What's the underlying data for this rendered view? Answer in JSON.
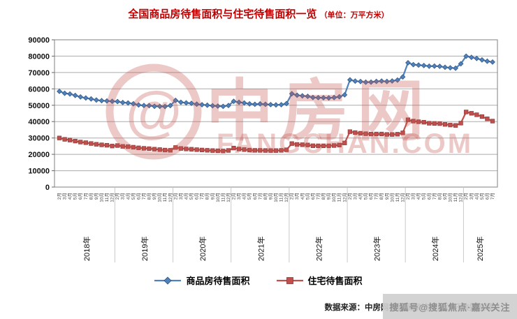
{
  "title": {
    "main": "全国商品房待售面积与住宅待售面积一览",
    "unit": "（单位：万平方米）"
  },
  "legend": [
    {
      "label": "商品房待售面积",
      "color": "#4F81BD",
      "border": "#2E537C",
      "marker": "diamond"
    },
    {
      "label": "住宅待售面积",
      "color": "#C0504D",
      "border": "#8C3836",
      "marker": "square"
    }
  ],
  "watermark": {
    "cn": "中房网",
    "en": "FANGCHAN.COM",
    "logo_glyph": "@"
  },
  "footer": {
    "source": "数据来源：中房网根据国家统计局公开数据整理",
    "sohu_badge": "搜狐号@搜狐焦点·嘉兴关注"
  },
  "colors": {
    "title_red": "#C00000",
    "series_blue": "#4F81BD",
    "series_red": "#C0504D",
    "gridline": "#ABABAB",
    "plot_border": "#808080",
    "watermark_red": "rgba(197,84,78,0.32)"
  },
  "chart_data": {
    "type": "line",
    "title": "全国商品房待售面积与住宅待售面积一览",
    "xlabel": "",
    "ylabel": "万平方米",
    "ylim": [
      0,
      90000
    ],
    "yticks": [
      0,
      10000,
      20000,
      30000,
      40000,
      50000,
      60000,
      70000,
      80000,
      90000
    ],
    "grid": true,
    "legend_position": "bottom",
    "x_groups": [
      {
        "year": "2018年",
        "months": [
          "2月",
          "3月",
          "4月",
          "5月",
          "6月",
          "7月",
          "8月",
          "9月",
          "10月",
          "11月",
          "12月"
        ]
      },
      {
        "year": "2019年",
        "months": [
          "2月",
          "3月",
          "4月",
          "5月",
          "6月",
          "7月",
          "8月",
          "9月",
          "10月",
          "11月",
          "12月"
        ]
      },
      {
        "year": "2020年",
        "months": [
          "2月",
          "3月",
          "4月",
          "5月",
          "6月",
          "7月",
          "8月",
          "9月",
          "10月",
          "11月",
          "12月"
        ]
      },
      {
        "year": "2021年",
        "months": [
          "2月",
          "3月",
          "4月",
          "5月",
          "6月",
          "7月",
          "8月",
          "9月",
          "10月",
          "11月",
          "12月"
        ]
      },
      {
        "year": "2022年",
        "months": [
          "2月",
          "3月",
          "4月",
          "5月",
          "6月",
          "7月",
          "8月",
          "9月",
          "10月",
          "11月",
          "12月"
        ]
      },
      {
        "year": "2023年",
        "months": [
          "2月",
          "3月",
          "4月",
          "5月",
          "6月",
          "7月",
          "8月",
          "9月",
          "10月",
          "11月",
          "12月"
        ]
      },
      {
        "year": "2024年",
        "months": [
          "2月",
          "3月",
          "4月",
          "5月",
          "6月",
          "7月",
          "8月",
          "9月",
          "10月",
          "11月",
          "12月"
        ]
      },
      {
        "year": "2025年",
        "months": [
          "2月",
          "3月",
          "4月",
          "5月",
          "6月",
          "7月"
        ]
      }
    ],
    "series": [
      {
        "name": "商品房待售面积",
        "color": "#4F81BD",
        "border": "#2E537C",
        "marker": "diamond",
        "values": [
          58468,
          57329,
          56898,
          56010,
          55083,
          54428,
          53873,
          53191,
          52789,
          52627,
          52414,
          52251,
          51646,
          51380,
          50928,
          50162,
          49876,
          49784,
          49346,
          49323,
          49221,
          49821,
          52985,
          51838,
          51449,
          51184,
          50662,
          50323,
          50052,
          49707,
          49492,
          49287,
          49850,
          52425,
          51841,
          51380,
          50830,
          50577,
          50864,
          50588,
          50385,
          50194,
          50312,
          51023,
          57026,
          56113,
          55735,
          55433,
          54784,
          54655,
          54605,
          54474,
          54734,
          55203,
          56366,
          65528,
          64770,
          64487,
          64120,
          64159,
          64564,
          64795,
          64537,
          64835,
          65385,
          67295,
          75969,
          74833,
          74553,
          74256,
          73894,
          73926,
          73784,
          73177,
          72909,
          72645,
          75327,
          79970,
          79300,
          78600,
          77700,
          76900,
          76400
        ]
      },
      {
        "name": "住宅待售面积",
        "color": "#C0504D",
        "border": "#8C3836",
        "marker": "square",
        "values": [
          29983,
          29156,
          28704,
          28103,
          27522,
          27107,
          26620,
          26162,
          25800,
          25551,
          25091,
          25379,
          24882,
          24677,
          24354,
          23991,
          23671,
          23481,
          23164,
          22899,
          22615,
          22473,
          24181,
          23574,
          23301,
          23114,
          22854,
          22664,
          22486,
          22324,
          22169,
          22065,
          22379,
          23833,
          23250,
          22898,
          22606,
          22425,
          22442,
          22358,
          22315,
          22297,
          22427,
          22761,
          26580,
          26063,
          25875,
          25708,
          25249,
          25208,
          25218,
          25213,
          25397,
          25697,
          26947,
          33852,
          33274,
          32899,
          32574,
          32390,
          32427,
          32410,
          32179,
          32122,
          32302,
          33139,
          41109,
          40320,
          39936,
          39615,
          38972,
          38869,
          38755,
          38284,
          37907,
          37658,
          39088,
          45900,
          45100,
          44200,
          43100,
          41700,
          40300
        ]
      }
    ]
  }
}
